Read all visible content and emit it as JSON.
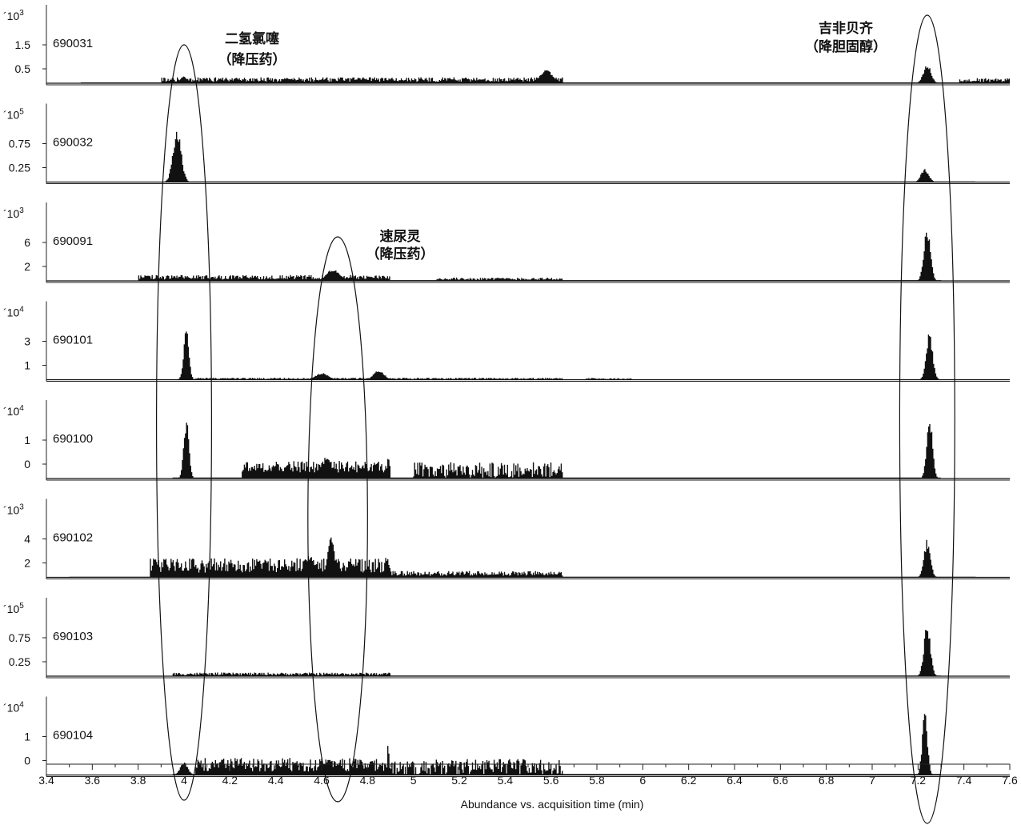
{
  "chart_data": {
    "type": "line",
    "xlabel": "Abundance vs. acquisition time (min)",
    "xlim": [
      3.4,
      7.6
    ],
    "x_ticks": [
      "3.4",
      "3.6",
      "3.8",
      "4",
      "4.2",
      "4.4",
      "4.6",
      "4.8",
      "5",
      "5.2",
      "5.4",
      "5.6",
      "5.8",
      "6",
      "6.2",
      "6.4",
      "6.6",
      "6.8",
      "7",
      "7.2",
      "7.4",
      "7.6"
    ],
    "panels": [
      {
        "name": "690031",
        "scale": "´10",
        "exp": "3",
        "yticks": [
          "1.5",
          "0.5"
        ],
        "ylim": [
          0,
          2.5
        ],
        "baseline": {
          "start": 3.55,
          "end": 7.6,
          "level": 0.03
        },
        "noise": [
          {
            "start": 3.9,
            "end": 5.65,
            "level": 0.18
          },
          {
            "start": 7.38,
            "end": 7.6,
            "level": 0.15
          }
        ],
        "peaks": [
          {
            "rt": 4.0,
            "height": 0.25,
            "width": 0.03
          },
          {
            "rt": 4.45,
            "height": 0.2,
            "width": 0.04
          },
          {
            "rt": 5.58,
            "height": 0.48,
            "width": 0.05
          },
          {
            "rt": 7.24,
            "height": 0.7,
            "width": 0.03
          }
        ]
      },
      {
        "name": "690032",
        "scale": "´10",
        "exp": "5",
        "yticks": [
          "0.75",
          "0.25"
        ],
        "ylim": [
          0,
          1.25
        ],
        "baseline": {
          "start": 3.92,
          "end": 7.45,
          "level": 0.01
        },
        "noise": [],
        "peaks": [
          {
            "rt": 3.97,
            "height": 0.96,
            "width": 0.032
          },
          {
            "rt": 7.23,
            "height": 0.24,
            "width": 0.03
          }
        ]
      },
      {
        "name": "690091",
        "scale": "´10",
        "exp": "3",
        "yticks": [
          "6",
          "2"
        ],
        "ylim": [
          0,
          10
        ],
        "baseline": {
          "start": 3.8,
          "end": 7.3,
          "level": 0.1
        },
        "noise": [
          {
            "start": 3.8,
            "end": 4.9,
            "level": 0.7
          },
          {
            "start": 5.1,
            "end": 5.65,
            "level": 0.4
          }
        ],
        "peaks": [
          {
            "rt": 4.65,
            "height": 1.8,
            "width": 0.05
          },
          {
            "rt": 7.24,
            "height": 8.0,
            "width": 0.025
          }
        ]
      },
      {
        "name": "690101",
        "scale": "´10",
        "exp": "4",
        "yticks": [
          "3",
          "1"
        ],
        "ylim": [
          0,
          5
        ],
        "baseline": {
          "start": 3.85,
          "end": 7.42,
          "level": 0.02
        },
        "noise": [
          {
            "start": 4.05,
            "end": 5.65,
            "level": 0.12
          },
          {
            "start": 5.75,
            "end": 5.95,
            "level": 0.1
          }
        ],
        "peaks": [
          {
            "rt": 4.01,
            "height": 3.9,
            "width": 0.02
          },
          {
            "rt": 4.6,
            "height": 0.5,
            "width": 0.05
          },
          {
            "rt": 4.85,
            "height": 0.7,
            "width": 0.04
          },
          {
            "rt": 7.25,
            "height": 3.5,
            "width": 0.025
          }
        ]
      },
      {
        "name": "690100",
        "scale": "´10",
        "exp": "4",
        "yticks": [
          "1",
          "0"
        ],
        "ylim": [
          -1,
          2.2
        ],
        "baseline": {
          "start": 3.95,
          "end": 7.3,
          "level": -0.95
        },
        "noise": [
          {
            "start": 4.25,
            "end": 4.9,
            "level": -0.6
          },
          {
            "start": 5.0,
            "end": 5.65,
            "level": -0.8
          }
        ],
        "peaks": [
          {
            "rt": 4.01,
            "height": 1.8,
            "width": 0.02
          },
          {
            "rt": 4.62,
            "height": 0.0,
            "width": 0.04
          },
          {
            "rt": 4.89,
            "height": 0.2,
            "width": 0.008
          },
          {
            "rt": 7.25,
            "height": 2.1,
            "width": 0.022
          }
        ]
      },
      {
        "name": "690102",
        "scale": "´10",
        "exp": "3",
        "yticks": [
          "4",
          "2"
        ],
        "ylim": [
          0,
          6.5
        ],
        "baseline": {
          "start": 3.5,
          "end": 7.45,
          "level": 0.05
        },
        "noise": [
          {
            "start": 3.85,
            "end": 4.9,
            "level": 1.5
          },
          {
            "start": 4.9,
            "end": 5.65,
            "level": 0.5
          }
        ],
        "peaks": [
          {
            "rt": 4.64,
            "height": 4.6,
            "width": 0.025
          },
          {
            "rt": 4.55,
            "height": 2.2,
            "width": 0.04
          },
          {
            "rt": 4.88,
            "height": 2.2,
            "width": 0.01
          },
          {
            "rt": 7.24,
            "height": 3.6,
            "width": 0.025
          }
        ]
      },
      {
        "name": "690103",
        "scale": "´10",
        "exp": "5",
        "yticks": [
          "0.75",
          "0.25"
        ],
        "ylim": [
          0,
          1.15
        ],
        "baseline": {
          "start": 3.95,
          "end": 7.3,
          "level": 0.01
        },
        "noise": [
          {
            "start": 3.95,
            "end": 4.9,
            "level": 0.05
          }
        ],
        "peaks": [
          {
            "rt": 7.24,
            "height": 0.9,
            "width": 0.025
          }
        ]
      },
      {
        "name": "690104",
        "scale": "´10",
        "exp": "4",
        "yticks": [
          "1",
          "0"
        ],
        "ylim": [
          -1,
          2.2
        ],
        "baseline": {
          "start": 3.95,
          "end": 7.3,
          "level": -0.95
        },
        "noise": [
          {
            "start": 4.05,
            "end": 4.9,
            "level": -0.7
          },
          {
            "start": 4.9,
            "end": 5.65,
            "level": -0.85
          }
        ],
        "peaks": [
          {
            "rt": 4.0,
            "height": -0.4,
            "width": 0.03
          },
          {
            "rt": 4.63,
            "height": -0.2,
            "width": 0.03
          },
          {
            "rt": 4.89,
            "height": 0.8,
            "width": 0.006
          },
          {
            "rt": 7.23,
            "height": 2.0,
            "width": 0.02
          }
        ]
      }
    ],
    "annotations": [
      {
        "line1": "二氢氯噻",
        "line2": "（降压药）",
        "center_rt": 4.0,
        "rx_rt": 0.12
      },
      {
        "line1": "速尿灵",
        "line2": "（降压药）",
        "center_rt": 4.67,
        "rx_rt": 0.13
      },
      {
        "line1": "吉非贝齐",
        "line2": "（降胆固醇）",
        "center_rt": 7.24,
        "rx_rt": 0.12
      }
    ]
  }
}
